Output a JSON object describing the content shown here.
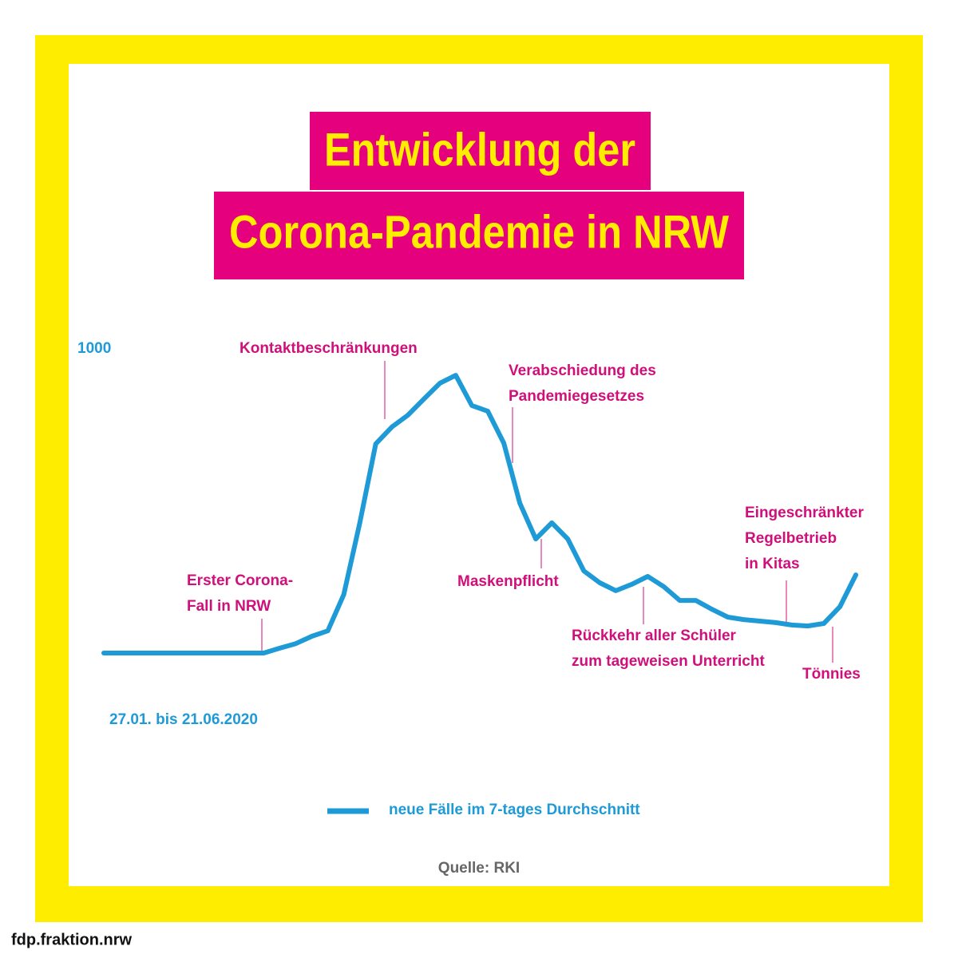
{
  "chart_data": {
    "type": "line",
    "title": [
      "Entwicklung der",
      "Corona-Pandemie in NRW"
    ],
    "x_label": "27.01. bis 21.06.2020",
    "ylim": [
      0,
      1000
    ],
    "yticks": [
      1000
    ],
    "series": [
      {
        "name": "neue Fälle im 7-tages Durchschnitt",
        "color": "#1e9ad6",
        "values": [
          0,
          0,
          0,
          0,
          0,
          0,
          0,
          0,
          0,
          0,
          0,
          16,
          31,
          55,
          73,
          192,
          428,
          688,
          743,
          782,
          835,
          887,
          913,
          814,
          795,
          690,
          493,
          375,
          428,
          375,
          270,
          231,
          205,
          226,
          252,
          218,
          173,
          173,
          144,
          118,
          110,
          105,
          100,
          92,
          89,
          97,
          152,
          257
        ]
      }
    ],
    "annotations": [
      {
        "lines": [
          "Erster Corona-",
          "Fall in NRW"
        ]
      },
      {
        "lines": [
          "Kontaktbeschränkungen"
        ]
      },
      {
        "lines": [
          "Verabschiedung des",
          "Pandemiegesetzes"
        ]
      },
      {
        "lines": [
          "Maskenpflicht"
        ]
      },
      {
        "lines": [
          "Rückkehr aller Schüler",
          "zum tageweisen Unterricht"
        ]
      },
      {
        "lines": [
          "Eingeschränkter",
          "Regelbetrieb",
          "in Kitas"
        ]
      },
      {
        "lines": [
          "Tönnies"
        ]
      }
    ],
    "source": "Quelle: RKI",
    "footer": "fdp.fraktion.nrw"
  }
}
